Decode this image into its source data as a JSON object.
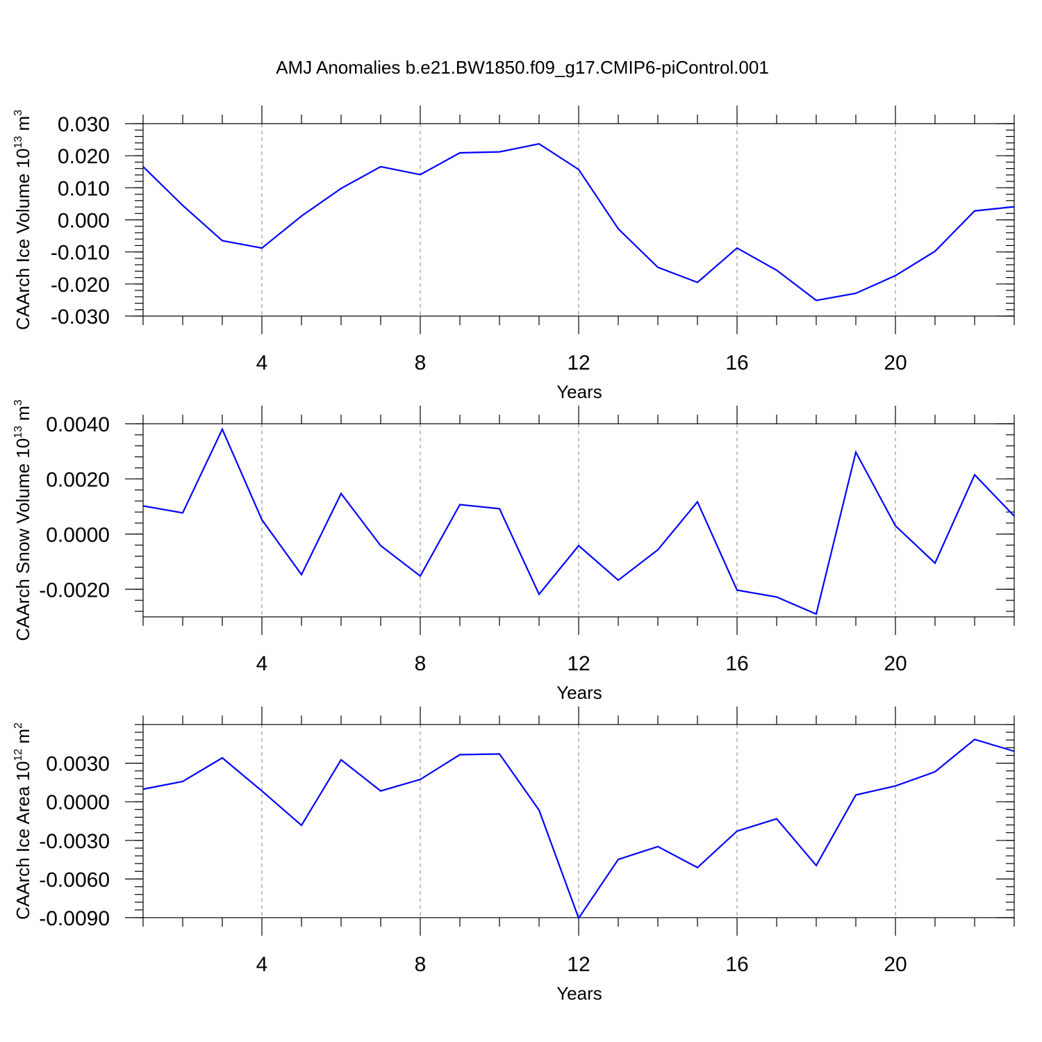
{
  "title": "AMJ Anomalies b.e21.BW1850.f09_g17.CMIP6-piControl.001",
  "colors": {
    "series": "#0000ff",
    "grid": "#808080",
    "axes": "#000000"
  },
  "chart_data": [
    {
      "type": "line",
      "title": "AMJ Anomalies b.e21.BW1850.f09_g17.CMIP6-piControl.001",
      "xlabel": "Years",
      "ylabel": "CAArch Ice Volume 10^13 m^3",
      "ylabel_base": "CAArch Ice Volume 10",
      "ylabel_exp": "13",
      "ylabel_unit": "m",
      "ylabel_unit_exp": "3",
      "xlim": [
        1,
        23
      ],
      "ylim": [
        -0.03,
        0.03
      ],
      "x_ticks": [
        4,
        8,
        12,
        16,
        20
      ],
      "x_tick_labels": [
        "4",
        "8",
        "12",
        "16",
        "20"
      ],
      "y_ticks": [
        -0.03,
        -0.02,
        -0.01,
        0.0,
        0.01,
        0.02,
        0.03
      ],
      "y_tick_labels": [
        "-0.030",
        "-0.020",
        "-0.010",
        "0.000",
        "0.010",
        "0.020",
        "0.030"
      ],
      "y_minor_step": 0.002,
      "grid": "x-dashed",
      "x": [
        1,
        2,
        3,
        4,
        5,
        6,
        7,
        8,
        9,
        10,
        11,
        12,
        13,
        14,
        15,
        16,
        17,
        18,
        19,
        20,
        21,
        22,
        23
      ],
      "values": [
        0.0166,
        0.0045,
        -0.0065,
        -0.0088,
        0.0012,
        0.0098,
        0.0166,
        0.0141,
        0.0209,
        0.0212,
        0.0237,
        0.0157,
        -0.0028,
        -0.0148,
        -0.0195,
        -0.0088,
        -0.0157,
        -0.0251,
        -0.0229,
        -0.0174,
        -0.0098,
        0.0028,
        0.0041
      ]
    },
    {
      "type": "line",
      "xlabel": "Years",
      "ylabel": "CAArch Snow Volume 10^13 m^3",
      "ylabel_base": "CAArch Snow Volume 10",
      "ylabel_exp": "13",
      "ylabel_unit": "m",
      "ylabel_unit_exp": "3",
      "xlim": [
        1,
        23
      ],
      "ylim": [
        -0.003,
        0.004
      ],
      "x_ticks": [
        4,
        8,
        12,
        16,
        20
      ],
      "x_tick_labels": [
        "4",
        "8",
        "12",
        "16",
        "20"
      ],
      "y_ticks": [
        -0.002,
        0.0,
        0.002,
        0.004
      ],
      "y_tick_labels": [
        "-0.0020",
        "0.0000",
        "0.0020",
        "0.0040"
      ],
      "y_minor_step": 0.0004,
      "grid": "x-dashed",
      "x": [
        1,
        2,
        3,
        4,
        5,
        6,
        7,
        8,
        9,
        10,
        11,
        12,
        13,
        14,
        15,
        16,
        17,
        18,
        19,
        20,
        21,
        22,
        23
      ],
      "values": [
        0.00102,
        0.00077,
        0.0038,
        0.00052,
        -0.00147,
        0.00147,
        -0.00042,
        -0.00152,
        0.00107,
        0.00092,
        -0.00218,
        -0.00042,
        -0.00167,
        -0.00057,
        0.00117,
        -0.00203,
        -0.00228,
        -0.0029,
        0.00297,
        0.0003,
        -0.00105,
        0.00215,
        0.00065
      ]
    },
    {
      "type": "line",
      "xlabel": "Years",
      "ylabel": "CAArch Ice Area 10^12 m^2",
      "ylabel_base": "CAArch Ice Area 10",
      "ylabel_exp": "12",
      "ylabel_unit": "m",
      "ylabel_unit_exp": "2",
      "xlim": [
        1,
        23
      ],
      "ylim": [
        -0.009,
        0.006
      ],
      "x_ticks": [
        4,
        8,
        12,
        16,
        20
      ],
      "x_tick_labels": [
        "4",
        "8",
        "12",
        "16",
        "20"
      ],
      "y_ticks": [
        -0.009,
        -0.006,
        -0.003,
        0.0,
        0.003
      ],
      "y_tick_labels": [
        "-0.0090",
        "-0.0060",
        "-0.0030",
        "0.0000",
        "0.0030"
      ],
      "y_minor_step": 0.0006,
      "grid": "x-dashed",
      "x": [
        1,
        2,
        3,
        4,
        5,
        6,
        7,
        8,
        9,
        10,
        11,
        12,
        13,
        14,
        15,
        16,
        17,
        18,
        19,
        20,
        21,
        22,
        23
      ],
      "values": [
        0.00098,
        0.00158,
        0.00341,
        0.00084,
        -0.00183,
        0.00326,
        0.00084,
        0.00174,
        0.00366,
        0.00371,
        -0.00065,
        -0.00904,
        -0.00448,
        -0.00348,
        -0.00511,
        -0.00228,
        -0.00132,
        -0.00495,
        0.00053,
        0.00123,
        0.00233,
        0.00484,
        0.00392
      ]
    }
  ]
}
